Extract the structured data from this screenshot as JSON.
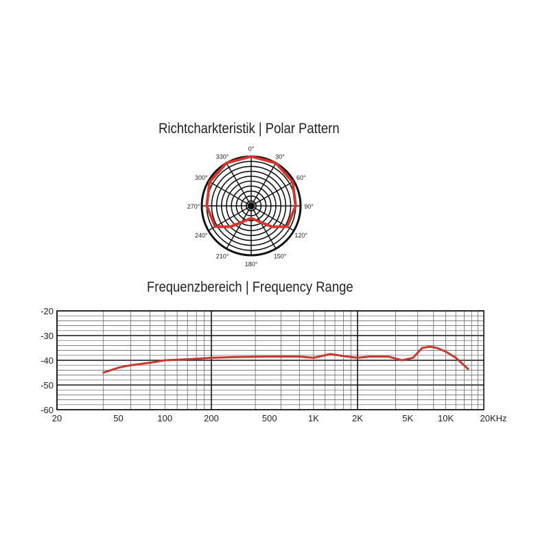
{
  "chart_data": [
    {
      "type": "polar",
      "title": "Richtcharkteristik | Polar Pattern",
      "angle_labels": [
        "0°",
        "30°",
        "60°",
        "90°",
        "120°",
        "150°",
        "180°",
        "210°",
        "240°",
        "270°",
        "300°",
        "330°"
      ],
      "series": [
        {
          "color": "#d9332b",
          "angles_deg": [
            0,
            30,
            60,
            90,
            120,
            135,
            150,
            165,
            180,
            195,
            210,
            225,
            240,
            270,
            300,
            330,
            360
          ],
          "relative_level": [
            1.0,
            1.0,
            0.97,
            0.9,
            0.84,
            0.6,
            0.38,
            0.29,
            0.25,
            0.29,
            0.38,
            0.6,
            0.84,
            0.9,
            0.97,
            1.0,
            1.0
          ]
        }
      ]
    },
    {
      "type": "line",
      "title": "Frequenzbereich | Frequency Range",
      "xscale": "log",
      "xlim": [
        20,
        20000
      ],
      "ylim": [
        -60,
        -20
      ],
      "grid": true,
      "x_tick_values": [
        20,
        50,
        100,
        200,
        500,
        1000,
        2000,
        5000,
        10000,
        20000
      ],
      "x_tick_labels": [
        "20",
        "50",
        "100",
        "200",
        "500",
        "1K",
        "2K",
        "5K",
        "10K",
        "20KHz"
      ],
      "y_tick_values": [
        -20,
        -30,
        -40,
        -50,
        -60
      ],
      "y_tick_labels": [
        "-20",
        "-30",
        "-40",
        "-50",
        "-60"
      ],
      "series": [
        {
          "color": "#c8372d",
          "x": [
            40,
            50,
            60,
            80,
            100,
            150,
            200,
            300,
            500,
            800,
            1000,
            1300,
            1700,
            2000,
            2500,
            3500,
            4500,
            5500,
            6500,
            7500,
            8500,
            10000,
            12000,
            15000
          ],
          "y": [
            -45,
            -43,
            -42,
            -41,
            -40,
            -39.5,
            -39,
            -38.7,
            -38.5,
            -38.5,
            -39,
            -37.5,
            -38.5,
            -39,
            -38.5,
            -38.5,
            -40,
            -39,
            -35,
            -34.5,
            -35,
            -36.5,
            -39,
            -43.5
          ]
        }
      ]
    }
  ]
}
